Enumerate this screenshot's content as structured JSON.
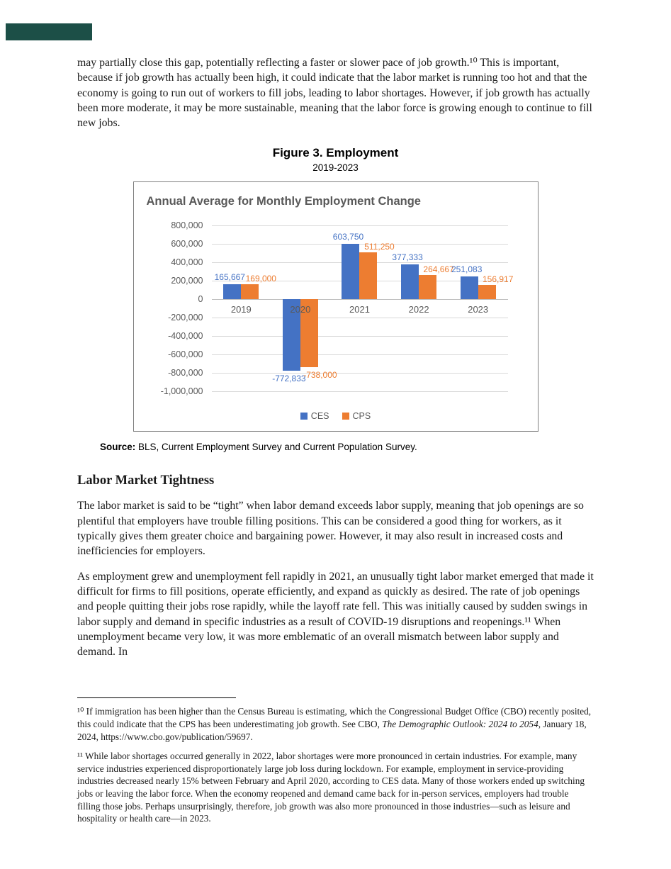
{
  "page": {
    "intro_paragraph": "may partially close this gap, potentially reflecting a faster or slower pace of job growth.¹⁰ This is important, because if job growth has actually been high, it could indicate that the labor market is running too hot and that the economy is going to run out of workers to fill jobs, leading to labor shortages. However, if job growth has actually been more moderate, it may be more sustainable, meaning that the labor force is growing enough to continue to fill new jobs."
  },
  "figure": {
    "title": "Figure 3. Employment",
    "subtitle": "2019-2023",
    "source_label": "Source:",
    "source_text": " BLS, Current Employment Survey and Current Population Survey."
  },
  "chart_data": {
    "type": "bar",
    "title": "Annual Average for Monthly Employment Change",
    "categories": [
      "2019",
      "2020",
      "2021",
      "2022",
      "2023"
    ],
    "series": [
      {
        "name": "CES",
        "color": "#4472C4",
        "values": [
          165667,
          -772833,
          603750,
          377333,
          251083
        ],
        "labels": [
          "165,667",
          "-772,833",
          "603,750",
          "377,333",
          "251,083"
        ]
      },
      {
        "name": "CPS",
        "color": "#ED7D31",
        "values": [
          169000,
          -738000,
          511250,
          264667,
          156917
        ],
        "labels": [
          "169,000",
          "-738,000",
          "511,250",
          "264,667",
          "156,917"
        ]
      }
    ],
    "ylim": [
      -1000000,
      800000
    ],
    "ytick_step": 200000,
    "yticks": [
      "800,000",
      "600,000",
      "400,000",
      "200,000",
      "0",
      "-200,000",
      "-400,000",
      "-600,000",
      "-800,000",
      "-1,000,000"
    ],
    "grid": true,
    "legend_position": "bottom"
  },
  "section": {
    "heading": "Labor Market Tightness",
    "paragraph1": "The labor market is said to be “tight” when labor demand exceeds labor supply, meaning that job openings are so plentiful that employers have trouble filling positions. This can be considered a good thing for workers, as it typically gives them greater choice and bargaining power. However, it may also result in increased costs and inefficiencies for employers.",
    "paragraph2": "As employment grew and unemployment fell rapidly in 2021, an unusually tight labor market emerged that made it difficult for firms to fill positions, operate efficiently, and expand as quickly as desired. The rate of job openings and people quitting their jobs rose rapidly, while the layoff rate fell. This was initially caused by sudden swings in labor supply and demand in specific industries as a result of COVID-19 disruptions and reopenings.¹¹ When unemployment became very low, it was more emblematic of an overall mismatch between labor supply and demand. In"
  },
  "footnotes": {
    "fn10_pre": "¹⁰ If immigration has been higher than the Census Bureau is estimating, which the Congressional Budget Office (CBO) recently posited, this could indicate that the CPS has been underestimating job growth. See CBO, ",
    "fn10_italic": "The Demographic Outlook: 2024 to 2054",
    "fn10_post": ", January 18, 2024, https://www.cbo.gov/publication/59697.",
    "fn11": "¹¹ While labor shortages occurred generally in 2022, labor shortages were more pronounced in certain industries. For example, many service industries experienced disproportionately large job loss during lockdown. For example, employment in service-providing industries decreased nearly 15% between February and April 2020, according to CES data. Many of those workers ended up switching jobs or leaving the labor force. When the economy reopened and demand came back for in-person services, employers had trouble filling those jobs. Perhaps unsurprisingly, therefore, job growth was also more pronounced in those industries—such as leisure and hospitality or health care—in 2023."
  }
}
